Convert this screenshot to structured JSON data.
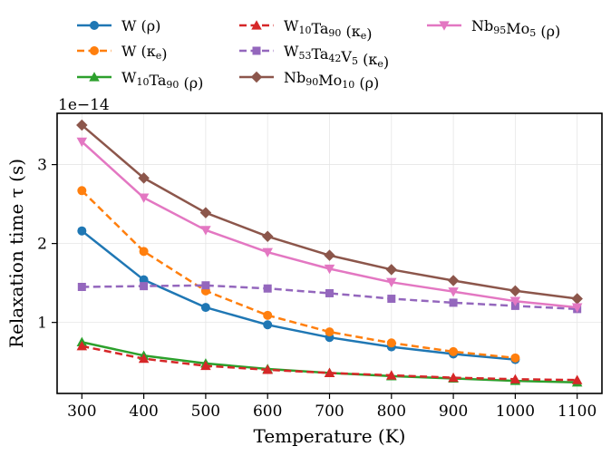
{
  "chart_data": {
    "type": "line",
    "xlabel": "Temperature (K)",
    "ylabel": "Relaxation time τ (s)",
    "offset_label": "1e−14",
    "x_ticks": [
      300,
      400,
      500,
      600,
      700,
      800,
      900,
      1000,
      1100
    ],
    "y_ticks": [
      1,
      2,
      3
    ],
    "xlim": [
      260,
      1140
    ],
    "ylim": [
      0.1,
      3.65
    ],
    "y_scale": "1e-14",
    "grid": true,
    "legend_position": "top, outside plot, 3 columns",
    "series": [
      {
        "name": "W (ρ)",
        "label_parts": [
          [
            "W (ρ)",
            ""
          ]
        ],
        "color": "#1f77b4",
        "marker": "circle",
        "dashed": false,
        "x": [
          300,
          400,
          500,
          600,
          700,
          800,
          900,
          1000
        ],
        "y": [
          2.16,
          1.54,
          1.19,
          0.97,
          0.81,
          0.69,
          0.6,
          0.53
        ]
      },
      {
        "name": "W (κₑ)",
        "label_parts": [
          [
            "W (κ",
            ""
          ],
          [
            "e",
            "sub"
          ],
          [
            ")",
            ""
          ]
        ],
        "color": "#ff7f0e",
        "marker": "circle",
        "dashed": true,
        "x": [
          300,
          400,
          500,
          600,
          700,
          800,
          900,
          1000
        ],
        "y": [
          2.67,
          1.9,
          1.4,
          1.09,
          0.88,
          0.74,
          0.63,
          0.55
        ]
      },
      {
        "name": "W₁₀Ta₉₀ (ρ)",
        "label_parts": [
          [
            "W",
            ""
          ],
          [
            "10",
            "sub"
          ],
          [
            "Ta",
            ""
          ],
          [
            "90",
            "sub"
          ],
          [
            " (ρ)",
            ""
          ]
        ],
        "color": "#2ca02c",
        "marker": "triangle-up",
        "dashed": false,
        "x": [
          300,
          400,
          500,
          600,
          700,
          800,
          900,
          1000,
          1100
        ],
        "y": [
          0.75,
          0.58,
          0.48,
          0.41,
          0.36,
          0.32,
          0.29,
          0.26,
          0.24
        ]
      },
      {
        "name": "W₁₀Ta₉₀ (κₑ)",
        "label_parts": [
          [
            "W",
            ""
          ],
          [
            "10",
            "sub"
          ],
          [
            "Ta",
            ""
          ],
          [
            "90",
            "sub"
          ],
          [
            " (κ",
            ""
          ],
          [
            "e",
            "sub"
          ],
          [
            ")",
            ""
          ]
        ],
        "color": "#d62728",
        "marker": "triangle-up",
        "dashed": true,
        "x": [
          300,
          400,
          500,
          600,
          700,
          800,
          900,
          1000,
          1100
        ],
        "y": [
          0.7,
          0.54,
          0.45,
          0.4,
          0.36,
          0.33,
          0.3,
          0.28,
          0.27
        ]
      },
      {
        "name": "W₅₃Ta₄₂V₅ (κₑ)",
        "label_parts": [
          [
            "W",
            ""
          ],
          [
            "53",
            "sub"
          ],
          [
            "Ta",
            ""
          ],
          [
            "42",
            "sub"
          ],
          [
            "V",
            ""
          ],
          [
            "5",
            "sub"
          ],
          [
            " (κ",
            ""
          ],
          [
            "e",
            "sub"
          ],
          [
            ")",
            ""
          ]
        ],
        "color": "#9467bd",
        "marker": "square",
        "dashed": true,
        "x": [
          300,
          400,
          500,
          600,
          700,
          800,
          900,
          1000,
          1100
        ],
        "y": [
          1.45,
          1.46,
          1.47,
          1.43,
          1.37,
          1.3,
          1.25,
          1.21,
          1.17
        ]
      },
      {
        "name": "Nb₉₀Mo₁₀ (ρ)",
        "label_parts": [
          [
            "Nb",
            ""
          ],
          [
            "90",
            "sub"
          ],
          [
            "Mo",
            ""
          ],
          [
            "10",
            "sub"
          ],
          [
            " (ρ)",
            ""
          ]
        ],
        "color": "#8c564b",
        "marker": "diamond",
        "dashed": false,
        "x": [
          300,
          400,
          500,
          600,
          700,
          800,
          900,
          1000,
          1100
        ],
        "y": [
          3.5,
          2.83,
          2.39,
          2.09,
          1.85,
          1.67,
          1.53,
          1.4,
          1.3
        ]
      },
      {
        "name": "Nb₉₅Mo₅ (ρ)",
        "label_parts": [
          [
            "Nb",
            ""
          ],
          [
            "95",
            "sub"
          ],
          [
            "Mo",
            ""
          ],
          [
            "5",
            "sub"
          ],
          [
            " (ρ)",
            ""
          ]
        ],
        "color": "#e377c2",
        "marker": "triangle-down",
        "dashed": false,
        "x": [
          300,
          400,
          500,
          600,
          700,
          800,
          900,
          1000,
          1100
        ],
        "y": [
          3.29,
          2.58,
          2.17,
          1.89,
          1.68,
          1.51,
          1.39,
          1.27,
          1.19
        ]
      }
    ]
  }
}
